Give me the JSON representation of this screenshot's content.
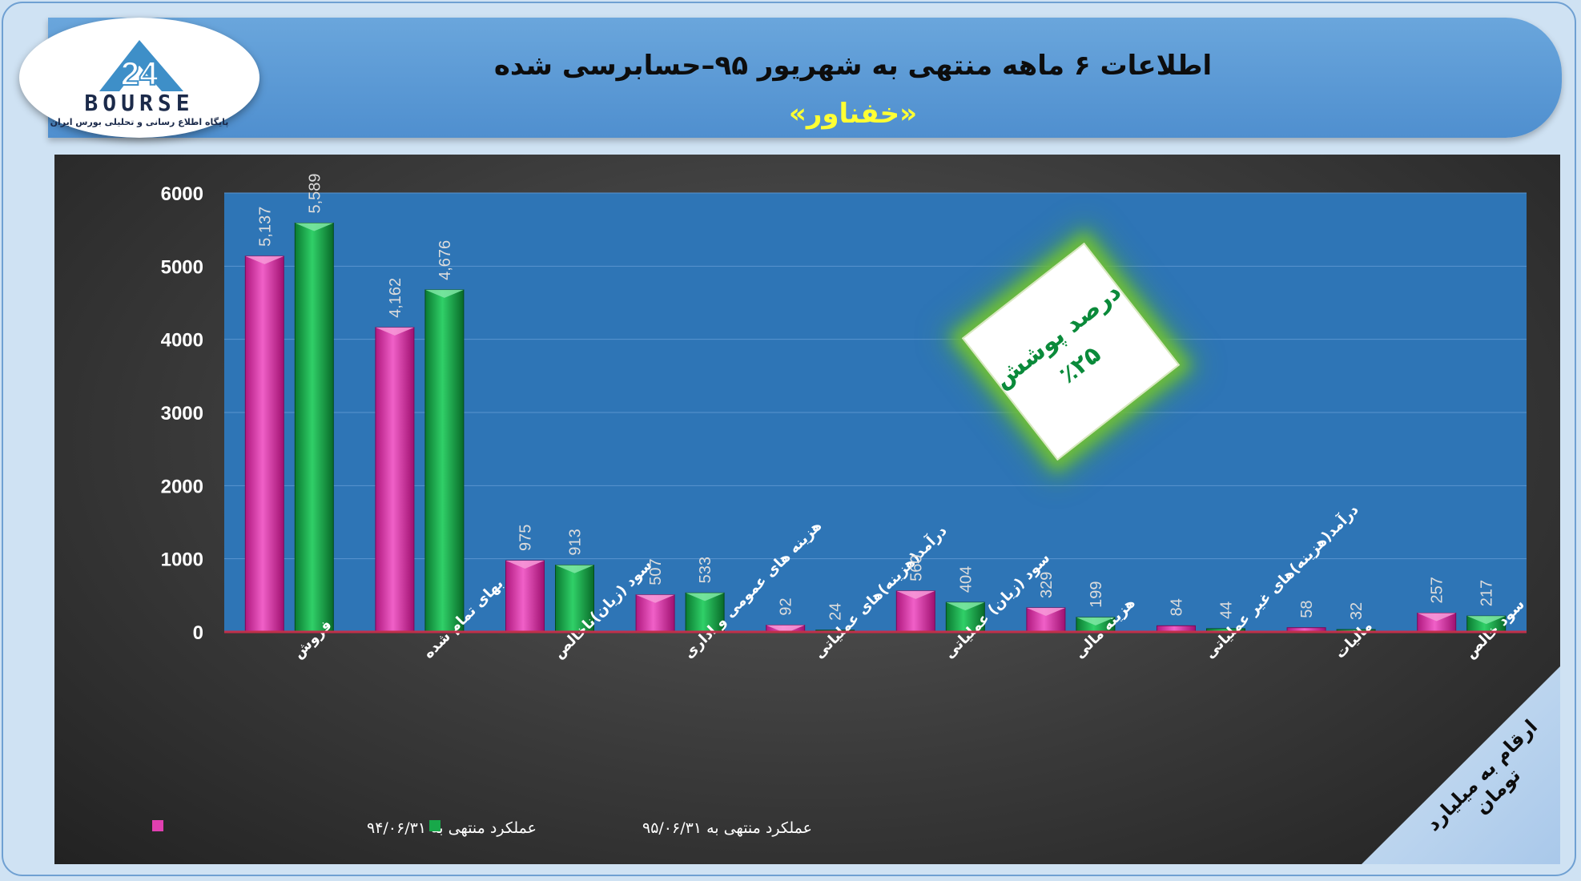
{
  "header": {
    "title": "اطلاعات ۶ ماهه منتهی به شهریور ۹۵–حسابرسی شده",
    "subtitle": "«خفناور»"
  },
  "logo": {
    "mark": "24",
    "name": "BOURSE",
    "tagline": "پایگاه اطلاع رسانی و تحلیلی بورس ایران"
  },
  "badge": {
    "line1": "درصد پوشش",
    "line2": "٪۲۵"
  },
  "units_note": "ارقام به میلیارد تومان",
  "colors": {
    "series1": "#e040b0",
    "series2": "#18a84a",
    "plot_bg": "#2e75b6",
    "axis_line": "#c0304a"
  },
  "chart_data": {
    "type": "bar",
    "title": "",
    "xlabel": "",
    "ylabel": "",
    "ylim": [
      0,
      6000
    ],
    "yticks": [
      0,
      1000,
      2000,
      3000,
      4000,
      5000,
      6000
    ],
    "grid": true,
    "legend": "bottom-left",
    "categories": [
      "فروش",
      "بهای تمام شده",
      "سود (زیان)ناخالص",
      "هزینه های عمومی و اداری",
      "درآمد(هزینه)های عملیاتی",
      "سود (زیان) عملیاتی",
      "هزینه مالی",
      "درآمد(هزینه)های غیر عملیاتی",
      "مالیات",
      "سود خالص"
    ],
    "series": [
      {
        "name": "عملکرد منتهی به ۹۴/۰۶/۳۱",
        "values": [
          5137,
          4162,
          975,
          507,
          92,
          560,
          329,
          84,
          58,
          257
        ],
        "labels": [
          "5,137",
          "4,162",
          "975",
          "507",
          "92",
          "560",
          "329",
          "84",
          "58",
          "257"
        ]
      },
      {
        "name": "عملکرد منتهی به ۹۵/۰۶/۳۱",
        "values": [
          5589,
          4676,
          913,
          533,
          24,
          404,
          199,
          44,
          32,
          217
        ],
        "labels": [
          "5,589",
          "4,676",
          "913",
          "533",
          "24",
          "404",
          "199",
          "44",
          "32",
          "217"
        ]
      }
    ]
  }
}
